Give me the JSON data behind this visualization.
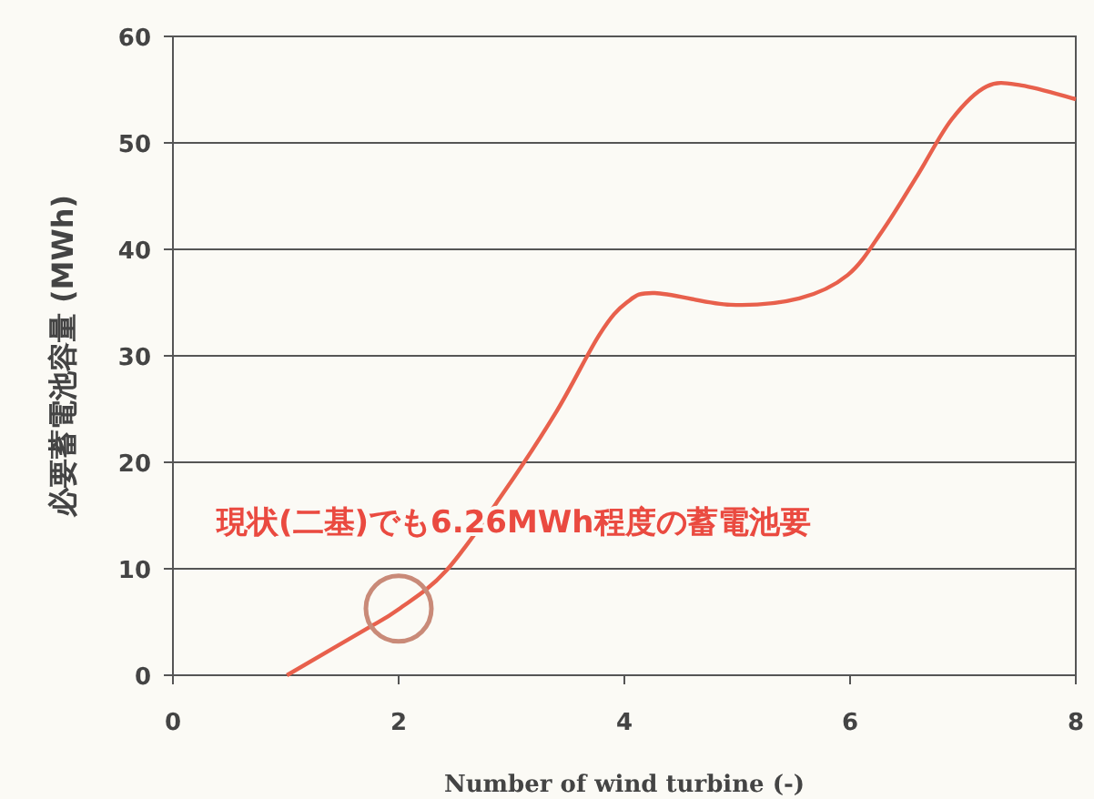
{
  "chart_data": {
    "type": "line",
    "xlabel": "Number of wind turbine (-)",
    "ylabel": "必要蓄電池容量 (MWh)",
    "x": [
      1.01,
      1.69,
      2.0,
      2.42,
      2.92,
      3.4,
      3.78,
      4.02,
      4.27,
      4.94,
      5.55,
      5.98,
      6.29,
      6.6,
      6.9,
      7.21,
      7.52,
      8
    ],
    "series": [
      {
        "color": "#e8604c",
        "values": [
          0,
          4.2,
          6.2,
          9.8,
          17,
          24.8,
          32,
          35,
          35.9,
          34.8,
          35.4,
          37.6,
          41.8,
          47,
          52.2,
          55.3,
          55.4,
          54.1
        ]
      }
    ],
    "xlim": [
      0,
      8
    ],
    "ylim": [
      0,
      60
    ],
    "xticks": [
      0,
      2,
      4,
      6,
      8
    ],
    "yticks": [
      0,
      10,
      20,
      30,
      40,
      50,
      60
    ],
    "grid": "y",
    "annotations": [
      {
        "text": "現状(二基)でも6.26MWh程度の蓄電池要",
        "x": 2,
        "y": 6.26
      }
    ]
  }
}
